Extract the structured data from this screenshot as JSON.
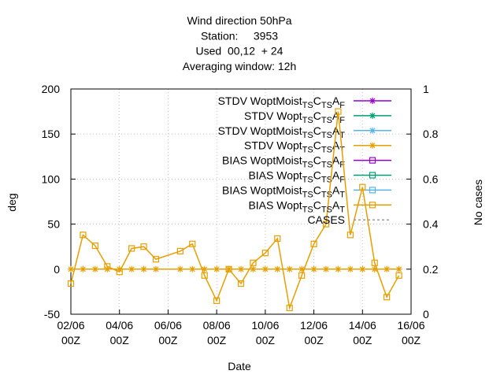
{
  "chart_data": {
    "type": "line",
    "title": [
      "Wind direction 50hPa",
      "Station:     3953",
      "Used  00,12  + 24",
      "Averaging window: 12h"
    ],
    "xlabel": "Date",
    "ylabel": "deg",
    "y2label": "No cases",
    "x": [
      "02/06 00Z",
      "02/06 12Z",
      "03/06 00Z",
      "03/06 12Z",
      "04/06 00Z",
      "04/06 12Z",
      "05/06 00Z",
      "05/06 12Z",
      "06/06 12Z",
      "07/06 00Z",
      "07/06 12Z",
      "08/06 00Z",
      "08/06 12Z",
      "09/06 00Z",
      "09/06 12Z",
      "10/06 00Z",
      "10/06 12Z",
      "11/06 00Z",
      "11/06 12Z",
      "12/06 00Z",
      "12/06 12Z",
      "13/06 00Z",
      "13/06 12Z",
      "14/06 00Z",
      "14/06 12Z",
      "15/06 00Z",
      "15/06 12Z"
    ],
    "xlim": [
      "02/06 00Z",
      "16/06 00Z"
    ],
    "xticks": [
      "02/06 00Z",
      "04/06 00Z",
      "06/06 00Z",
      "08/06 00Z",
      "10/06 00Z",
      "12/06 00Z",
      "14/06 00Z",
      "16/06 00Z"
    ],
    "ylim": [
      -50,
      200
    ],
    "yticks": [
      -50,
      0,
      50,
      100,
      150,
      200
    ],
    "y2lim": [
      0,
      1
    ],
    "y2ticks": [
      0,
      0.2,
      0.4,
      0.6,
      0.8,
      1
    ],
    "grid": true,
    "series": [
      {
        "name": "STDV WoptMoist_{TS}C_{TS}A_{F}",
        "color": "#9400d3",
        "marker": "star",
        "values": [
          null,
          null,
          null,
          null,
          null,
          null,
          null,
          null,
          null,
          null,
          null,
          null,
          null,
          null,
          null,
          null,
          null,
          null,
          null,
          null,
          null,
          null,
          null,
          null,
          null,
          null,
          null
        ]
      },
      {
        "name": "STDV Wopt_{TS}C_{TS}A_{F}",
        "color": "#009e73",
        "marker": "star",
        "values": [
          null,
          null,
          null,
          null,
          null,
          null,
          null,
          null,
          null,
          null,
          null,
          null,
          null,
          null,
          null,
          null,
          null,
          null,
          null,
          null,
          null,
          null,
          null,
          null,
          null,
          null,
          null
        ]
      },
      {
        "name": "STDV WoptMoist_{TS}C_{TS}A_{T}",
        "color": "#56b4e9",
        "marker": "star",
        "values": [
          null,
          null,
          null,
          null,
          null,
          null,
          null,
          null,
          null,
          null,
          null,
          null,
          null,
          null,
          null,
          null,
          null,
          null,
          null,
          null,
          null,
          null,
          null,
          null,
          null,
          null,
          null
        ]
      },
      {
        "name": "STDV Wopt_{TS}C_{TS}A_{T}",
        "color": "#e69f00",
        "marker": "star",
        "values": [
          0,
          0,
          0,
          0,
          0,
          0,
          0,
          0,
          0,
          0,
          0,
          0,
          0,
          0,
          0,
          0,
          0,
          0,
          0,
          0,
          0,
          0,
          0,
          0,
          0,
          0,
          0
        ]
      },
      {
        "name": "BIAS WoptMoist_{TS}C_{TS}A_{F}",
        "color": "#9400d3",
        "marker": "square",
        "values": [
          null,
          null,
          null,
          null,
          null,
          null,
          null,
          null,
          null,
          null,
          null,
          null,
          null,
          null,
          null,
          null,
          null,
          null,
          null,
          null,
          null,
          null,
          null,
          null,
          null,
          null,
          null
        ]
      },
      {
        "name": "BIAS Wopt_{TS}C_{TS}A_{F}",
        "color": "#009e73",
        "marker": "square",
        "values": [
          null,
          null,
          null,
          null,
          null,
          null,
          null,
          null,
          null,
          null,
          null,
          null,
          null,
          null,
          null,
          null,
          null,
          null,
          null,
          null,
          null,
          null,
          null,
          null,
          null,
          null,
          null
        ]
      },
      {
        "name": "BIAS WoptMoist_{TS}C_{TS}A_{T}",
        "color": "#56b4e9",
        "marker": "square",
        "values": [
          null,
          null,
          null,
          null,
          null,
          null,
          null,
          null,
          null,
          null,
          null,
          null,
          null,
          null,
          null,
          null,
          null,
          null,
          null,
          null,
          null,
          null,
          null,
          null,
          null,
          null,
          null
        ]
      },
      {
        "name": "BIAS Wopt_{TS}C_{TS}A_{T}",
        "color": "#e69f00",
        "marker": "square",
        "values": [
          -16,
          38,
          26,
          3,
          -3,
          23,
          25,
          11,
          20,
          28,
          -7,
          -35,
          0,
          -16,
          7,
          18,
          34,
          -43,
          -7,
          28,
          50,
          175,
          38,
          91,
          7,
          -31,
          -7
        ]
      },
      {
        "name": "CASES",
        "color": "#999999",
        "marker": "none",
        "dash": true,
        "axis": "y2",
        "values": [
          null,
          null,
          null,
          null,
          null,
          null,
          null,
          null,
          null,
          null,
          null,
          null,
          null,
          null,
          null,
          null,
          null,
          null,
          null,
          null,
          null,
          null,
          null,
          null,
          null,
          null,
          null
        ]
      }
    ]
  }
}
